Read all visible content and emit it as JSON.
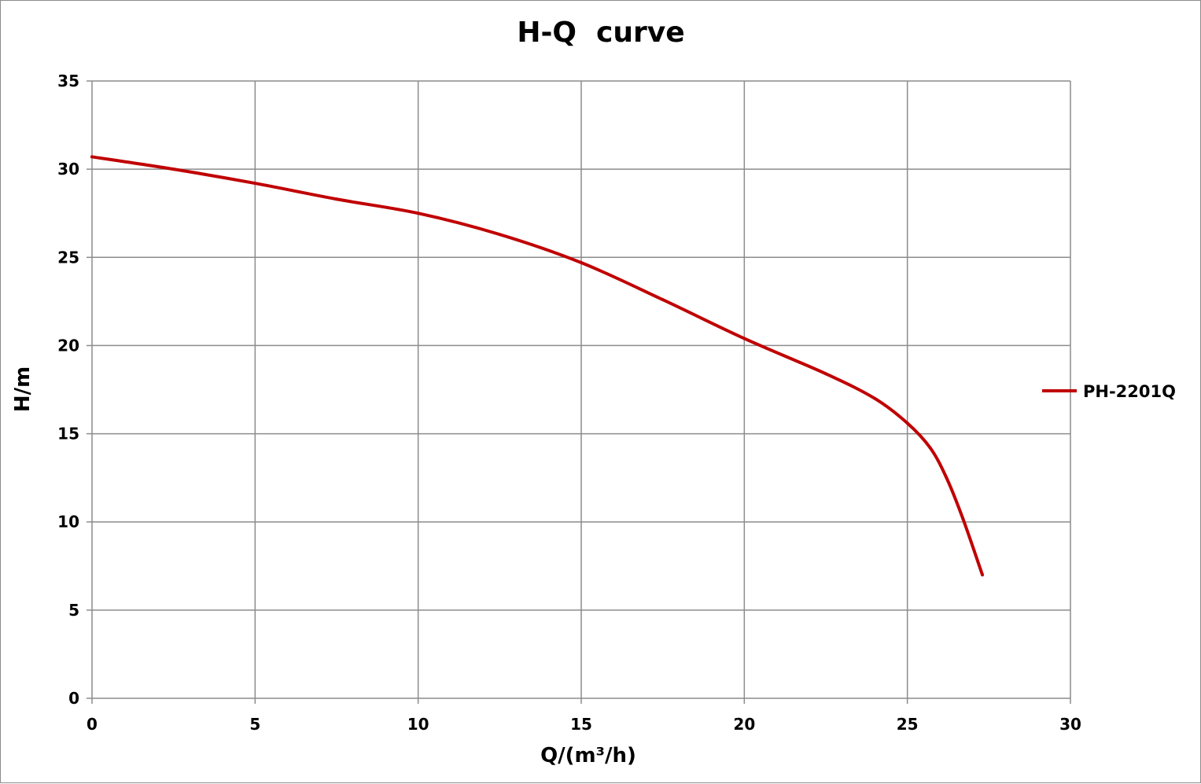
{
  "chart_data": {
    "type": "line",
    "title": "H-Q  curve",
    "xlabel": "Q/(m³/h)",
    "ylabel": "H/m",
    "xlim": [
      0,
      30
    ],
    "ylim": [
      0,
      35
    ],
    "x_ticks": [
      "0",
      "5",
      "10",
      "15",
      "20",
      "25",
      "30"
    ],
    "y_ticks": [
      "0",
      "5",
      "10",
      "15",
      "20",
      "25",
      "30",
      "35"
    ],
    "grid": true,
    "legend_position": "right",
    "series": [
      {
        "name": "PH-2201Q",
        "color": "#c00000",
        "x": [
          0,
          2.5,
          5,
          7.5,
          10,
          12.5,
          15,
          17.5,
          20,
          22.5,
          24,
          25,
          25.7,
          26.2,
          26.7,
          27.3
        ],
        "y": [
          30.7,
          30.0,
          29.2,
          28.3,
          27.5,
          26.3,
          24.7,
          22.6,
          20.4,
          18.4,
          17.0,
          15.6,
          14.2,
          12.5,
          10.2,
          7.0
        ]
      }
    ]
  }
}
